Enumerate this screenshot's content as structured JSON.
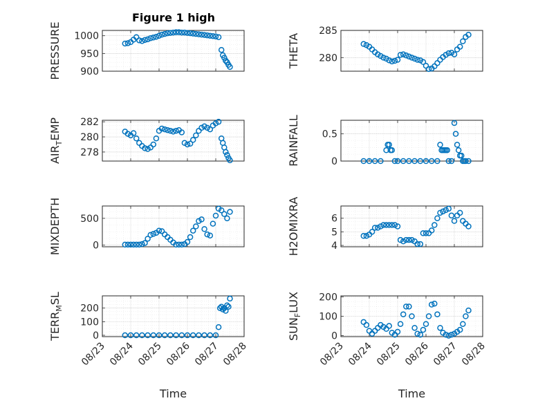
{
  "figure": {
    "title": "Figure 1 high",
    "marker_color": "#0072BD",
    "x_axis": {
      "label": "Time",
      "tick_labels": [
        "08/23",
        "08/24",
        "08/25",
        "08/26",
        "08/27",
        "08/28"
      ],
      "range": [
        0,
        5
      ]
    }
  },
  "chart_data": [
    {
      "type": "scatter",
      "ylabel": "PRESSURE",
      "ylabel_sub": "",
      "ylim": [
        900,
        1015
      ],
      "yticks": [
        900,
        950,
        1000
      ],
      "x": [
        0.8,
        0.9,
        1.0,
        1.1,
        1.2,
        1.3,
        1.4,
        1.5,
        1.6,
        1.7,
        1.8,
        1.9,
        2.0,
        2.1,
        2.2,
        2.3,
        2.4,
        2.5,
        2.6,
        2.7,
        2.8,
        2.9,
        3.0,
        3.1,
        3.2,
        3.3,
        3.4,
        3.5,
        3.6,
        3.7,
        3.8,
        3.9,
        4.0,
        4.1,
        4.2,
        4.25,
        4.3,
        4.35,
        4.4,
        4.45,
        4.5
      ],
      "y": [
        978,
        979,
        982,
        989,
        996,
        987,
        985,
        988,
        990,
        993,
        995,
        997,
        1000,
        1003,
        1005,
        1007,
        1008,
        1009,
        1010,
        1010,
        1009,
        1009,
        1008,
        1007,
        1006,
        1005,
        1004,
        1003,
        1002,
        1001,
        1000,
        999,
        998,
        996,
        960,
        945,
        938,
        930,
        925,
        918,
        912
      ]
    },
    {
      "type": "scatter",
      "ylabel": "THETA",
      "ylabel_sub": "",
      "ylim": [
        277.5,
        285
      ],
      "yticks": [
        280,
        285
      ],
      "x": [
        0.8,
        0.9,
        1.0,
        1.1,
        1.2,
        1.3,
        1.4,
        1.5,
        1.6,
        1.7,
        1.8,
        1.9,
        2.0,
        2.1,
        2.2,
        2.3,
        2.4,
        2.5,
        2.6,
        2.7,
        2.8,
        2.9,
        3.0,
        3.1,
        3.2,
        3.3,
        3.4,
        3.5,
        3.6,
        3.7,
        3.8,
        3.9,
        4.0,
        4.1,
        4.2,
        4.3,
        4.4,
        4.5
      ],
      "y": [
        282.5,
        282.3,
        282.0,
        281.5,
        281.0,
        280.6,
        280.3,
        280.0,
        279.8,
        279.5,
        279.3,
        279.4,
        279.6,
        280.5,
        280.6,
        280.4,
        280.2,
        280.0,
        279.8,
        279.6,
        279.5,
        279.2,
        278.5,
        277.9,
        278.0,
        278.4,
        279.0,
        279.6,
        280.1,
        280.5,
        280.8,
        280.9,
        280.6,
        281.5,
        282.0,
        283.0,
        283.8,
        284.2
      ]
    },
    {
      "type": "scatter",
      "ylabel": "AIR",
      "ylabel_sub": "T",
      "ylabel_tail": "EMP",
      "ylim": [
        276.8,
        282.2
      ],
      "yticks": [
        278,
        280,
        282
      ],
      "x": [
        0.8,
        0.9,
        1.0,
        1.1,
        1.2,
        1.3,
        1.4,
        1.5,
        1.6,
        1.7,
        1.8,
        1.9,
        2.0,
        2.1,
        2.2,
        2.3,
        2.4,
        2.5,
        2.6,
        2.7,
        2.8,
        2.9,
        3.0,
        3.1,
        3.2,
        3.3,
        3.4,
        3.5,
        3.6,
        3.7,
        3.8,
        3.9,
        4.0,
        4.1,
        4.2,
        4.25,
        4.3,
        4.35,
        4.4,
        4.45,
        4.5
      ],
      "y": [
        280.7,
        280.4,
        280.2,
        280.5,
        279.8,
        279.2,
        278.8,
        278.5,
        278.4,
        278.6,
        279.0,
        279.8,
        280.8,
        281.1,
        281.0,
        280.9,
        280.8,
        280.7,
        280.8,
        280.9,
        280.6,
        279.2,
        279.0,
        279.1,
        279.6,
        280.2,
        280.8,
        281.2,
        281.4,
        281.2,
        281.0,
        281.5,
        281.8,
        282.0,
        279.8,
        279.2,
        278.6,
        278.0,
        277.6,
        277.2,
        276.9
      ]
    },
    {
      "type": "scatter",
      "ylabel": "RAINFALL",
      "ylabel_sub": "",
      "ylim": [
        0,
        0.75
      ],
      "yticks": [
        0,
        0.5
      ],
      "x": [
        0.8,
        1.0,
        1.2,
        1.4,
        1.6,
        1.65,
        1.7,
        1.75,
        1.8,
        1.9,
        2.0,
        2.2,
        2.4,
        2.6,
        2.8,
        3.0,
        3.2,
        3.4,
        3.5,
        3.55,
        3.6,
        3.65,
        3.7,
        3.75,
        3.8,
        3.9,
        4.0,
        4.05,
        4.1,
        4.15,
        4.2,
        4.25,
        4.3,
        4.35,
        4.4,
        4.5
      ],
      "y": [
        0,
        0,
        0,
        0,
        0.2,
        0.3,
        0.3,
        0.2,
        0.2,
        0,
        0,
        0,
        0,
        0,
        0,
        0,
        0,
        0,
        0.3,
        0.2,
        0.2,
        0.2,
        0.2,
        0.2,
        0,
        0,
        0.7,
        0.5,
        0.3,
        0.2,
        0.1,
        0.1,
        0,
        0,
        0,
        0
      ]
    },
    {
      "type": "scatter",
      "ylabel": "MIXDEPTH",
      "ylabel_sub": "",
      "ylim": [
        -30,
        730
      ],
      "yticks": [
        0,
        500
      ],
      "x": [
        0.8,
        0.9,
        1.0,
        1.1,
        1.2,
        1.3,
        1.4,
        1.5,
        1.6,
        1.7,
        1.8,
        1.9,
        2.0,
        2.1,
        2.2,
        2.3,
        2.4,
        2.5,
        2.6,
        2.7,
        2.8,
        2.9,
        3.0,
        3.1,
        3.2,
        3.3,
        3.4,
        3.5,
        3.6,
        3.7,
        3.8,
        3.9,
        4.0,
        4.1,
        4.2,
        4.3,
        4.4,
        4.5
      ],
      "y": [
        10,
        10,
        10,
        10,
        10,
        10,
        20,
        40,
        120,
        190,
        210,
        230,
        270,
        260,
        200,
        150,
        100,
        50,
        10,
        10,
        10,
        20,
        60,
        150,
        270,
        350,
        450,
        480,
        300,
        200,
        180,
        400,
        550,
        680,
        650,
        580,
        500,
        620
      ]
    },
    {
      "type": "scatter",
      "ylabel": "H2OMIXRA",
      "ylabel_sub": "",
      "ylim": [
        3.9,
        6.9
      ],
      "yticks": [
        4,
        5,
        6
      ],
      "x": [
        0.8,
        0.9,
        1.0,
        1.1,
        1.2,
        1.3,
        1.4,
        1.5,
        1.6,
        1.7,
        1.8,
        1.9,
        2.0,
        2.1,
        2.2,
        2.3,
        2.4,
        2.5,
        2.6,
        2.7,
        2.8,
        2.9,
        3.0,
        3.1,
        3.2,
        3.3,
        3.4,
        3.5,
        3.6,
        3.7,
        3.8,
        3.9,
        4.0,
        4.1,
        4.2,
        4.3,
        4.4,
        4.5
      ],
      "y": [
        4.7,
        4.7,
        4.8,
        5.0,
        5.3,
        5.3,
        5.4,
        5.5,
        5.5,
        5.5,
        5.5,
        5.5,
        5.4,
        4.4,
        4.3,
        4.4,
        4.4,
        4.4,
        4.3,
        4.1,
        4.1,
        4.9,
        4.9,
        4.9,
        5.1,
        5.5,
        6.0,
        6.4,
        6.5,
        6.6,
        6.7,
        6.2,
        5.8,
        6.2,
        6.4,
        5.8,
        5.6,
        5.4
      ]
    },
    {
      "type": "scatter",
      "ylabel": "TERR",
      "ylabel_sub": "M",
      "ylabel_tail": "SL",
      "ylim": [
        -10,
        290
      ],
      "yticks": [
        0,
        100,
        200
      ],
      "x": [
        0.8,
        1.0,
        1.2,
        1.4,
        1.6,
        1.8,
        2.0,
        2.2,
        2.4,
        2.6,
        2.8,
        3.0,
        3.2,
        3.4,
        3.6,
        3.8,
        4.0,
        4.1,
        4.15,
        4.2,
        4.25,
        4.3,
        4.35,
        4.4,
        4.45,
        4.5
      ],
      "y": [
        0,
        0,
        0,
        0,
        0,
        0,
        0,
        0,
        0,
        0,
        0,
        0,
        0,
        0,
        0,
        0,
        0,
        60,
        200,
        210,
        190,
        200,
        180,
        220,
        210,
        270
      ]
    },
    {
      "type": "scatter",
      "ylabel": "SUN",
      "ylabel_sub": "F",
      "ylabel_tail": "LUX",
      "ylim": [
        -5,
        205
      ],
      "yticks": [
        0,
        100,
        200
      ],
      "x": [
        0.8,
        0.9,
        1.0,
        1.1,
        1.2,
        1.3,
        1.4,
        1.5,
        1.6,
        1.7,
        1.8,
        1.9,
        2.0,
        2.1,
        2.2,
        2.3,
        2.4,
        2.5,
        2.6,
        2.7,
        2.8,
        2.9,
        3.0,
        3.1,
        3.2,
        3.3,
        3.4,
        3.5,
        3.6,
        3.7,
        3.8,
        3.9,
        4.0,
        4.1,
        4.2,
        4.3,
        4.4,
        4.5
      ],
      "y": [
        70,
        55,
        25,
        10,
        25,
        40,
        55,
        45,
        35,
        50,
        15,
        5,
        20,
        60,
        110,
        150,
        150,
        100,
        40,
        10,
        5,
        30,
        60,
        100,
        160,
        165,
        110,
        40,
        15,
        5,
        0,
        5,
        10,
        20,
        30,
        60,
        100,
        130
      ]
    }
  ]
}
